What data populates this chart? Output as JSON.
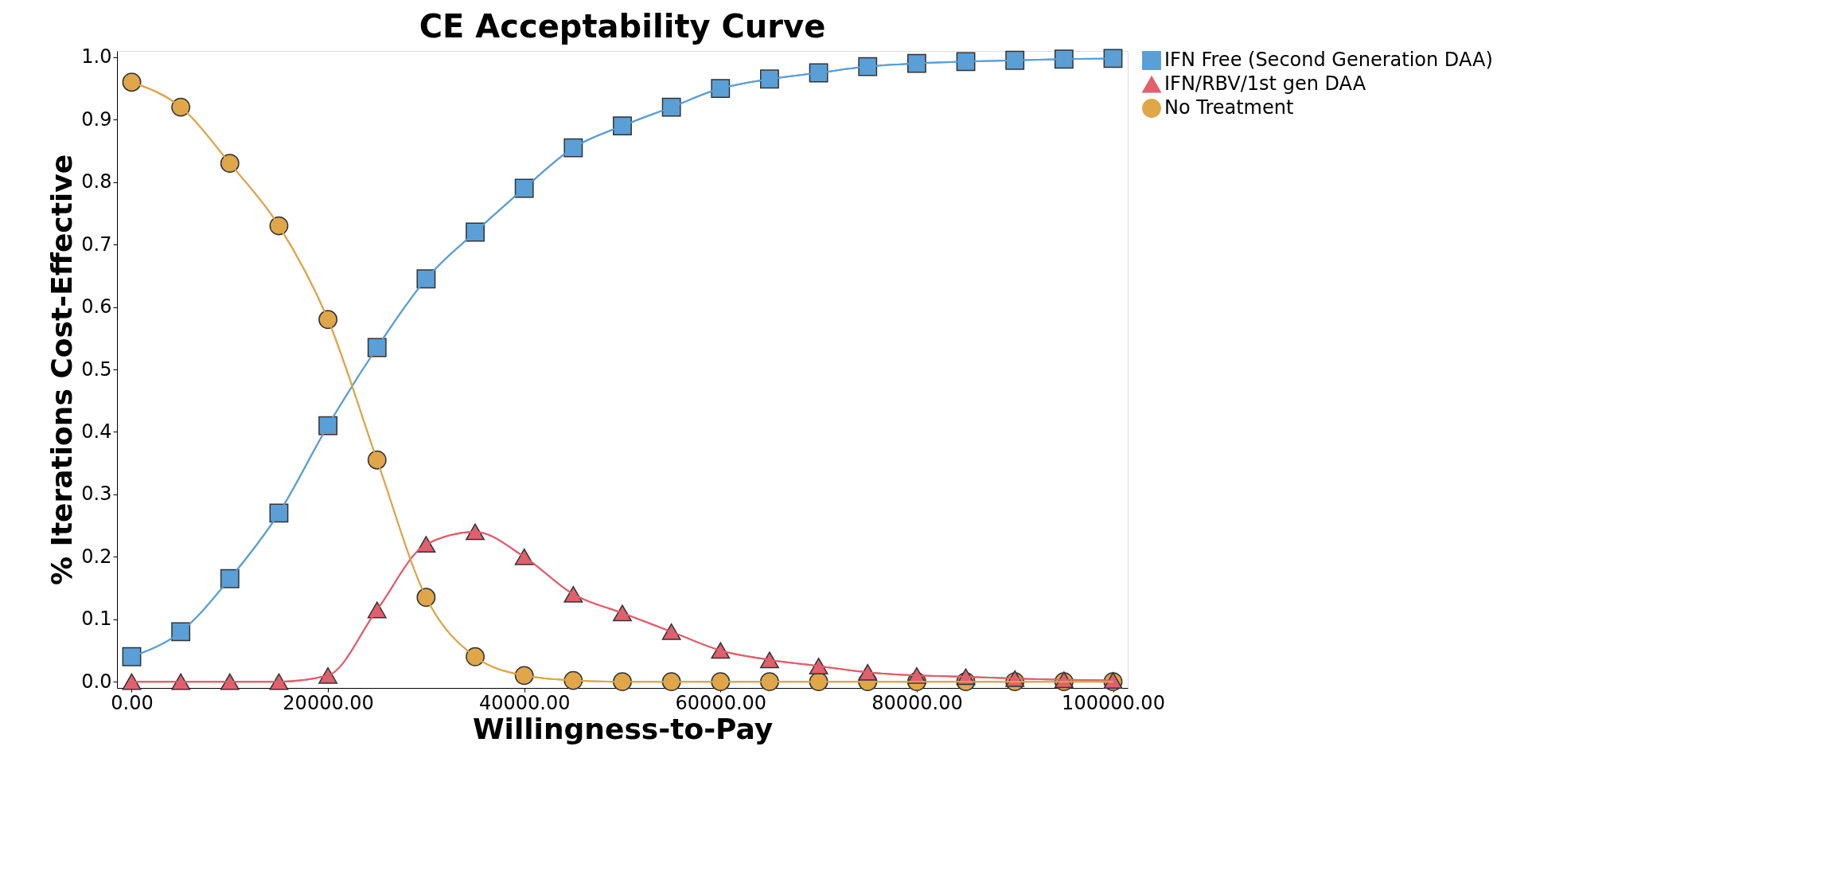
{
  "chart_data": {
    "type": "line",
    "title": "CE Acceptability Curve",
    "xlabel": "Willingness-to-Pay",
    "ylabel": "% Iterations Cost-Effective",
    "x": [
      0,
      5000,
      10000,
      15000,
      20000,
      25000,
      30000,
      35000,
      40000,
      45000,
      50000,
      55000,
      60000,
      65000,
      70000,
      75000,
      80000,
      85000,
      90000,
      95000,
      100000
    ],
    "series": [
      {
        "name": "IFN Free (Second Generation DAA)",
        "color": "#5a9fd6",
        "marker": "square",
        "values": [
          0.04,
          0.08,
          0.165,
          0.27,
          0.41,
          0.535,
          0.645,
          0.72,
          0.79,
          0.855,
          0.89,
          0.92,
          0.95,
          0.965,
          0.975,
          0.985,
          0.99,
          0.993,
          0.995,
          0.997,
          0.998
        ]
      },
      {
        "name": "IFN/RBV/1st gen DAA",
        "color": "#e0606e",
        "marker": "triangle",
        "values": [
          0,
          0,
          0,
          0,
          0.01,
          0.115,
          0.22,
          0.24,
          0.2,
          0.14,
          0.11,
          0.08,
          0.05,
          0.035,
          0.025,
          0.015,
          0.01,
          0.008,
          0.005,
          0.003,
          0.002
        ]
      },
      {
        "name": "No Treatment",
        "color": "#dfa64a",
        "marker": "circle",
        "values": [
          0.96,
          0.92,
          0.83,
          0.73,
          0.58,
          0.355,
          0.135,
          0.04,
          0.01,
          0.002,
          0,
          0,
          0,
          0,
          0,
          0,
          0,
          0,
          0,
          0,
          0
        ]
      }
    ],
    "xlim": [
      -1500,
      101500
    ],
    "ylim": [
      -0.01,
      1.01
    ],
    "xticks": [
      {
        "value": 0,
        "label": "0.00"
      },
      {
        "value": 20000,
        "label": "20000.00"
      },
      {
        "value": 40000,
        "label": "40000.00"
      },
      {
        "value": 60000,
        "label": "60000.00"
      },
      {
        "value": 80000,
        "label": "80000.00"
      },
      {
        "value": 100000,
        "label": "100000.00"
      }
    ],
    "yticks": [
      {
        "value": 0,
        "label": "0.0"
      },
      {
        "value": 0.1,
        "label": "0.1"
      },
      {
        "value": 0.2,
        "label": "0.2"
      },
      {
        "value": 0.3,
        "label": "0.3"
      },
      {
        "value": 0.4,
        "label": "0.4"
      },
      {
        "value": 0.5,
        "label": "0.5"
      },
      {
        "value": 0.6,
        "label": "0.6"
      },
      {
        "value": 0.7,
        "label": "0.7"
      },
      {
        "value": 0.8,
        "label": "0.8"
      },
      {
        "value": 0.9,
        "label": "0.9"
      },
      {
        "value": 1.0,
        "label": "1.0"
      }
    ],
    "grid": false,
    "legend": "right",
    "line_style": "solid"
  }
}
